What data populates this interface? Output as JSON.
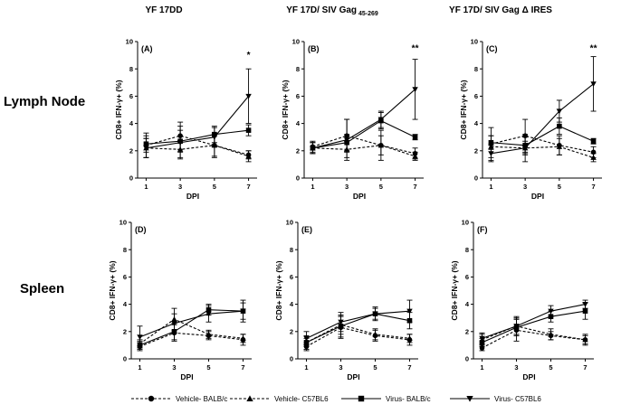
{
  "figure": {
    "column_titles": [
      {
        "main": "YF 17DD",
        "sub": ""
      },
      {
        "main": "YF 17D/ SIV Gag",
        "sub": "45-269"
      },
      {
        "main": "YF 17D/ SIV Gag",
        "sub": "Δ IRES"
      }
    ],
    "row_labels": [
      "Lymph Node",
      "Spleen"
    ],
    "legend": [
      {
        "label": "Vehicle- BALB/c",
        "marker": "circle",
        "dash": true
      },
      {
        "label": "Vehicle- C57BL6",
        "marker": "triangle-up",
        "dash": true
      },
      {
        "label": "Virus- BALB/c",
        "marker": "square",
        "dash": false
      },
      {
        "label": "Virus- C57BL6",
        "marker": "triangle-down",
        "dash": false
      }
    ]
  },
  "chart_data": [
    {
      "type": "line",
      "panel_label": "(A)",
      "title": "YF 17DD",
      "row": "Lymph Node",
      "xlabel": "DPI",
      "ylabel": "CD8+ IFN-γ+ (%)",
      "x": [
        1,
        3,
        5,
        7
      ],
      "xlim": [
        0.5,
        7.5
      ],
      "ylim": [
        0,
        10
      ],
      "yticks": [
        0,
        2,
        4,
        6,
        8,
        10
      ],
      "annotations": [
        {
          "x": 7,
          "y": 8.8,
          "text": "*"
        }
      ],
      "series": [
        {
          "name": "Vehicle- BALB/c",
          "values": [
            2.4,
            3.1,
            2.4,
            1.7
          ],
          "err": [
            0.9,
            1.0,
            0.9,
            0.3
          ]
        },
        {
          "name": "Vehicle- C57BL6",
          "values": [
            2.2,
            2.1,
            2.4,
            1.6
          ],
          "err": [
            0.7,
            0.6,
            0.8,
            0.4
          ]
        },
        {
          "name": "Virus- BALB/c",
          "values": [
            2.5,
            2.7,
            3.2,
            3.5
          ],
          "err": [
            0.6,
            0.8,
            0.6,
            0.4
          ]
        },
        {
          "name": "Virus- C57BL6",
          "values": [
            2.2,
            2.6,
            3.0,
            6.0
          ],
          "err": [
            0.7,
            1.2,
            0.7,
            2.0
          ]
        }
      ]
    },
    {
      "type": "line",
      "panel_label": "(B)",
      "title": "YF 17D/ SIV Gag 45-269",
      "row": "Lymph Node",
      "xlabel": "DPI",
      "ylabel": "CD8+ IFN-γ+ (%)",
      "x": [
        1,
        3,
        5,
        7
      ],
      "xlim": [
        0.5,
        7.5
      ],
      "ylim": [
        0,
        10
      ],
      "yticks": [
        0,
        2,
        4,
        6,
        8,
        10
      ],
      "annotations": [
        {
          "x": 7,
          "y": 9.3,
          "text": "**"
        }
      ],
      "series": [
        {
          "name": "Vehicle- BALB/c",
          "values": [
            2.3,
            3.1,
            2.4,
            1.8
          ],
          "err": [
            0.4,
            1.2,
            1.1,
            0.4
          ]
        },
        {
          "name": "Vehicle- C57BL6",
          "values": [
            2.2,
            2.1,
            2.4,
            1.6
          ],
          "err": [
            0.4,
            0.6,
            0.7,
            0.3
          ]
        },
        {
          "name": "Virus- BALB/c",
          "values": [
            2.2,
            2.6,
            4.2,
            3.0
          ],
          "err": [
            0.4,
            0.6,
            0.6,
            0.2
          ]
        },
        {
          "name": "Virus- C57BL6",
          "values": [
            2.2,
            2.8,
            4.3,
            6.5
          ],
          "err": [
            0.4,
            1.5,
            0.6,
            2.2
          ]
        }
      ]
    },
    {
      "type": "line",
      "panel_label": "(C)",
      "title": "YF 17D/ SIV Gag Δ IRES",
      "row": "Lymph Node",
      "xlabel": "DPI",
      "ylabel": "CD8+ IFN-γ+ (%)",
      "x": [
        1,
        3,
        5,
        7
      ],
      "xlim": [
        0.5,
        7.5
      ],
      "ylim": [
        0,
        10
      ],
      "yticks": [
        0,
        2,
        4,
        6,
        8,
        10
      ],
      "annotations": [
        {
          "x": 7,
          "y": 9.3,
          "text": "**"
        }
      ],
      "series": [
        {
          "name": "Vehicle- BALB/c",
          "values": [
            2.5,
            3.1,
            2.4,
            1.9
          ],
          "err": [
            1.2,
            1.2,
            0.7,
            0.4
          ]
        },
        {
          "name": "Vehicle- C57BL6",
          "values": [
            2.3,
            2.2,
            2.3,
            1.5
          ],
          "err": [
            0.8,
            0.5,
            0.6,
            0.3
          ]
        },
        {
          "name": "Virus- BALB/c",
          "values": [
            2.6,
            2.4,
            3.8,
            2.7
          ],
          "err": [
            0.5,
            0.6,
            0.6,
            0.2
          ]
        },
        {
          "name": "Virus- C57BL6",
          "values": [
            1.8,
            2.2,
            4.9,
            6.9
          ],
          "err": [
            0.6,
            1.0,
            0.8,
            2.0
          ]
        }
      ]
    },
    {
      "type": "line",
      "panel_label": "(D)",
      "title": "YF 17DD",
      "row": "Spleen",
      "xlabel": "DPI",
      "ylabel": "CD8+ IFN-γ+ (%)",
      "x": [
        1,
        3,
        5,
        7
      ],
      "xlim": [
        0.5,
        7.5
      ],
      "ylim": [
        0,
        10
      ],
      "yticks": [
        0,
        2,
        4,
        6,
        8,
        10
      ],
      "annotations": [],
      "series": [
        {
          "name": "Vehicle- BALB/c",
          "values": [
            0.9,
            1.9,
            1.7,
            1.4
          ],
          "err": [
            0.3,
            0.6,
            0.3,
            0.4
          ]
        },
        {
          "name": "Vehicle- C57BL6",
          "values": [
            1.1,
            2.9,
            1.8,
            1.5
          ],
          "err": [
            0.3,
            0.8,
            0.3,
            0.3
          ]
        },
        {
          "name": "Virus- BALB/c",
          "values": [
            1.0,
            2.0,
            3.6,
            3.5
          ],
          "err": [
            0.3,
            0.6,
            0.4,
            0.6
          ]
        },
        {
          "name": "Virus- C57BL6",
          "values": [
            1.6,
            2.6,
            3.3,
            3.5
          ],
          "err": [
            0.8,
            0.7,
            0.6,
            0.8
          ]
        }
      ]
    },
    {
      "type": "line",
      "panel_label": "(E)",
      "title": "YF 17D/ SIV Gag 45-269",
      "row": "Spleen",
      "xlabel": "DPI",
      "ylabel": "CD8+ IFN-γ+ (%)",
      "x": [
        1,
        3,
        5,
        7
      ],
      "xlim": [
        0.5,
        7.5
      ],
      "ylim": [
        0,
        10
      ],
      "yticks": [
        0,
        2,
        4,
        6,
        8,
        10
      ],
      "annotations": [],
      "series": [
        {
          "name": "Vehicle- BALB/c",
          "values": [
            0.9,
            2.3,
            1.7,
            1.4
          ],
          "err": [
            0.3,
            0.8,
            0.4,
            0.4
          ]
        },
        {
          "name": "Vehicle- C57BL6",
          "values": [
            1.2,
            2.5,
            1.8,
            1.5
          ],
          "err": [
            0.3,
            0.7,
            0.4,
            0.3
          ]
        },
        {
          "name": "Virus- BALB/c",
          "values": [
            1.2,
            2.4,
            3.3,
            2.8
          ],
          "err": [
            0.5,
            0.8,
            0.4,
            0.6
          ]
        },
        {
          "name": "Virus- C57BL6",
          "values": [
            1.5,
            2.7,
            3.3,
            3.5
          ],
          "err": [
            0.5,
            0.7,
            0.5,
            0.8
          ]
        }
      ]
    },
    {
      "type": "line",
      "panel_label": "(F)",
      "title": "YF 17D/ SIV Gag Δ IRES",
      "row": "Spleen",
      "xlabel": "DPI",
      "ylabel": "CD8+ IFN-γ+ (%)",
      "x": [
        1,
        3,
        5,
        7
      ],
      "xlim": [
        0.5,
        7.5
      ],
      "ylim": [
        0,
        10
      ],
      "yticks": [
        0,
        2,
        4,
        6,
        8,
        10
      ],
      "annotations": [],
      "series": [
        {
          "name": "Vehicle- BALB/c",
          "values": [
            0.8,
            2.1,
            1.7,
            1.4
          ],
          "err": [
            0.2,
            0.8,
            0.3,
            0.4
          ]
        },
        {
          "name": "Vehicle- C57BL6",
          "values": [
            1.4,
            2.4,
            1.8,
            1.4
          ],
          "err": [
            0.4,
            0.7,
            0.4,
            0.3
          ]
        },
        {
          "name": "Virus- BALB/c",
          "values": [
            1.2,
            2.3,
            3.1,
            3.5
          ],
          "err": [
            0.3,
            0.6,
            0.4,
            0.6
          ]
        },
        {
          "name": "Virus- C57BL6",
          "values": [
            1.5,
            2.4,
            3.5,
            4.0
          ],
          "err": [
            0.4,
            0.6,
            0.4,
            0.3
          ]
        }
      ]
    }
  ]
}
